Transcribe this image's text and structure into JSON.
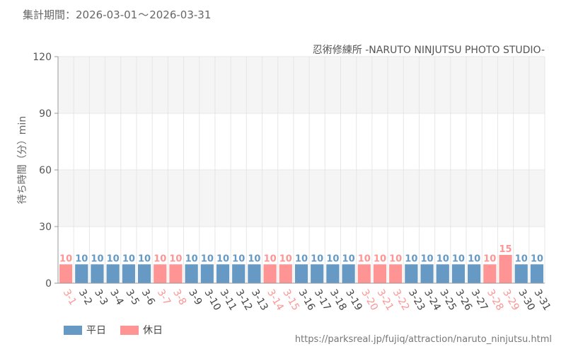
{
  "period": {
    "label": "集計期間：",
    "start": "2026-03-01",
    "separator": "〜",
    "end": "2026-03-31"
  },
  "legend": [
    {
      "label": "平日",
      "color": "#6699c4"
    },
    {
      "label": "休日",
      "color": "#ff9494"
    }
  ],
  "source": "https://parksreal.jp/fujiq/attraction/naruto_ninjutsu.html",
  "chart_data": {
    "type": "bar",
    "title": "忍術修練所 -NARUTO NINJUTSU PHOTO STUDIO-",
    "ylabel": "待ち時間（分）min",
    "xlabel": "",
    "ylim": [
      0,
      120
    ],
    "yticks": [
      0,
      30,
      60,
      90,
      120
    ],
    "grid": true,
    "legend_position": "bottom-left",
    "colors": {
      "weekday": "#6699c4",
      "holiday": "#ff9494"
    },
    "categories": [
      "3-1",
      "3-2",
      "3-3",
      "3-4",
      "3-5",
      "3-6",
      "3-7",
      "3-8",
      "3-9",
      "3-10",
      "3-11",
      "3-12",
      "3-13",
      "3-14",
      "3-15",
      "3-16",
      "3-17",
      "3-18",
      "3-19",
      "3-20",
      "3-21",
      "3-22",
      "3-23",
      "3-24",
      "3-25",
      "3-26",
      "3-27",
      "3-28",
      "3-29",
      "3-30",
      "3-31"
    ],
    "values": [
      10,
      10,
      10,
      10,
      10,
      10,
      10,
      10,
      10,
      10,
      10,
      10,
      10,
      10,
      10,
      10,
      10,
      10,
      10,
      10,
      10,
      10,
      10,
      10,
      10,
      10,
      10,
      10,
      15,
      10,
      10
    ],
    "day_type": [
      "休日",
      "平日",
      "平日",
      "平日",
      "平日",
      "平日",
      "休日",
      "休日",
      "平日",
      "平日",
      "平日",
      "平日",
      "平日",
      "休日",
      "休日",
      "平日",
      "平日",
      "平日",
      "平日",
      "休日",
      "休日",
      "休日",
      "平日",
      "平日",
      "平日",
      "平日",
      "平日",
      "休日",
      "休日",
      "平日",
      "平日"
    ]
  }
}
